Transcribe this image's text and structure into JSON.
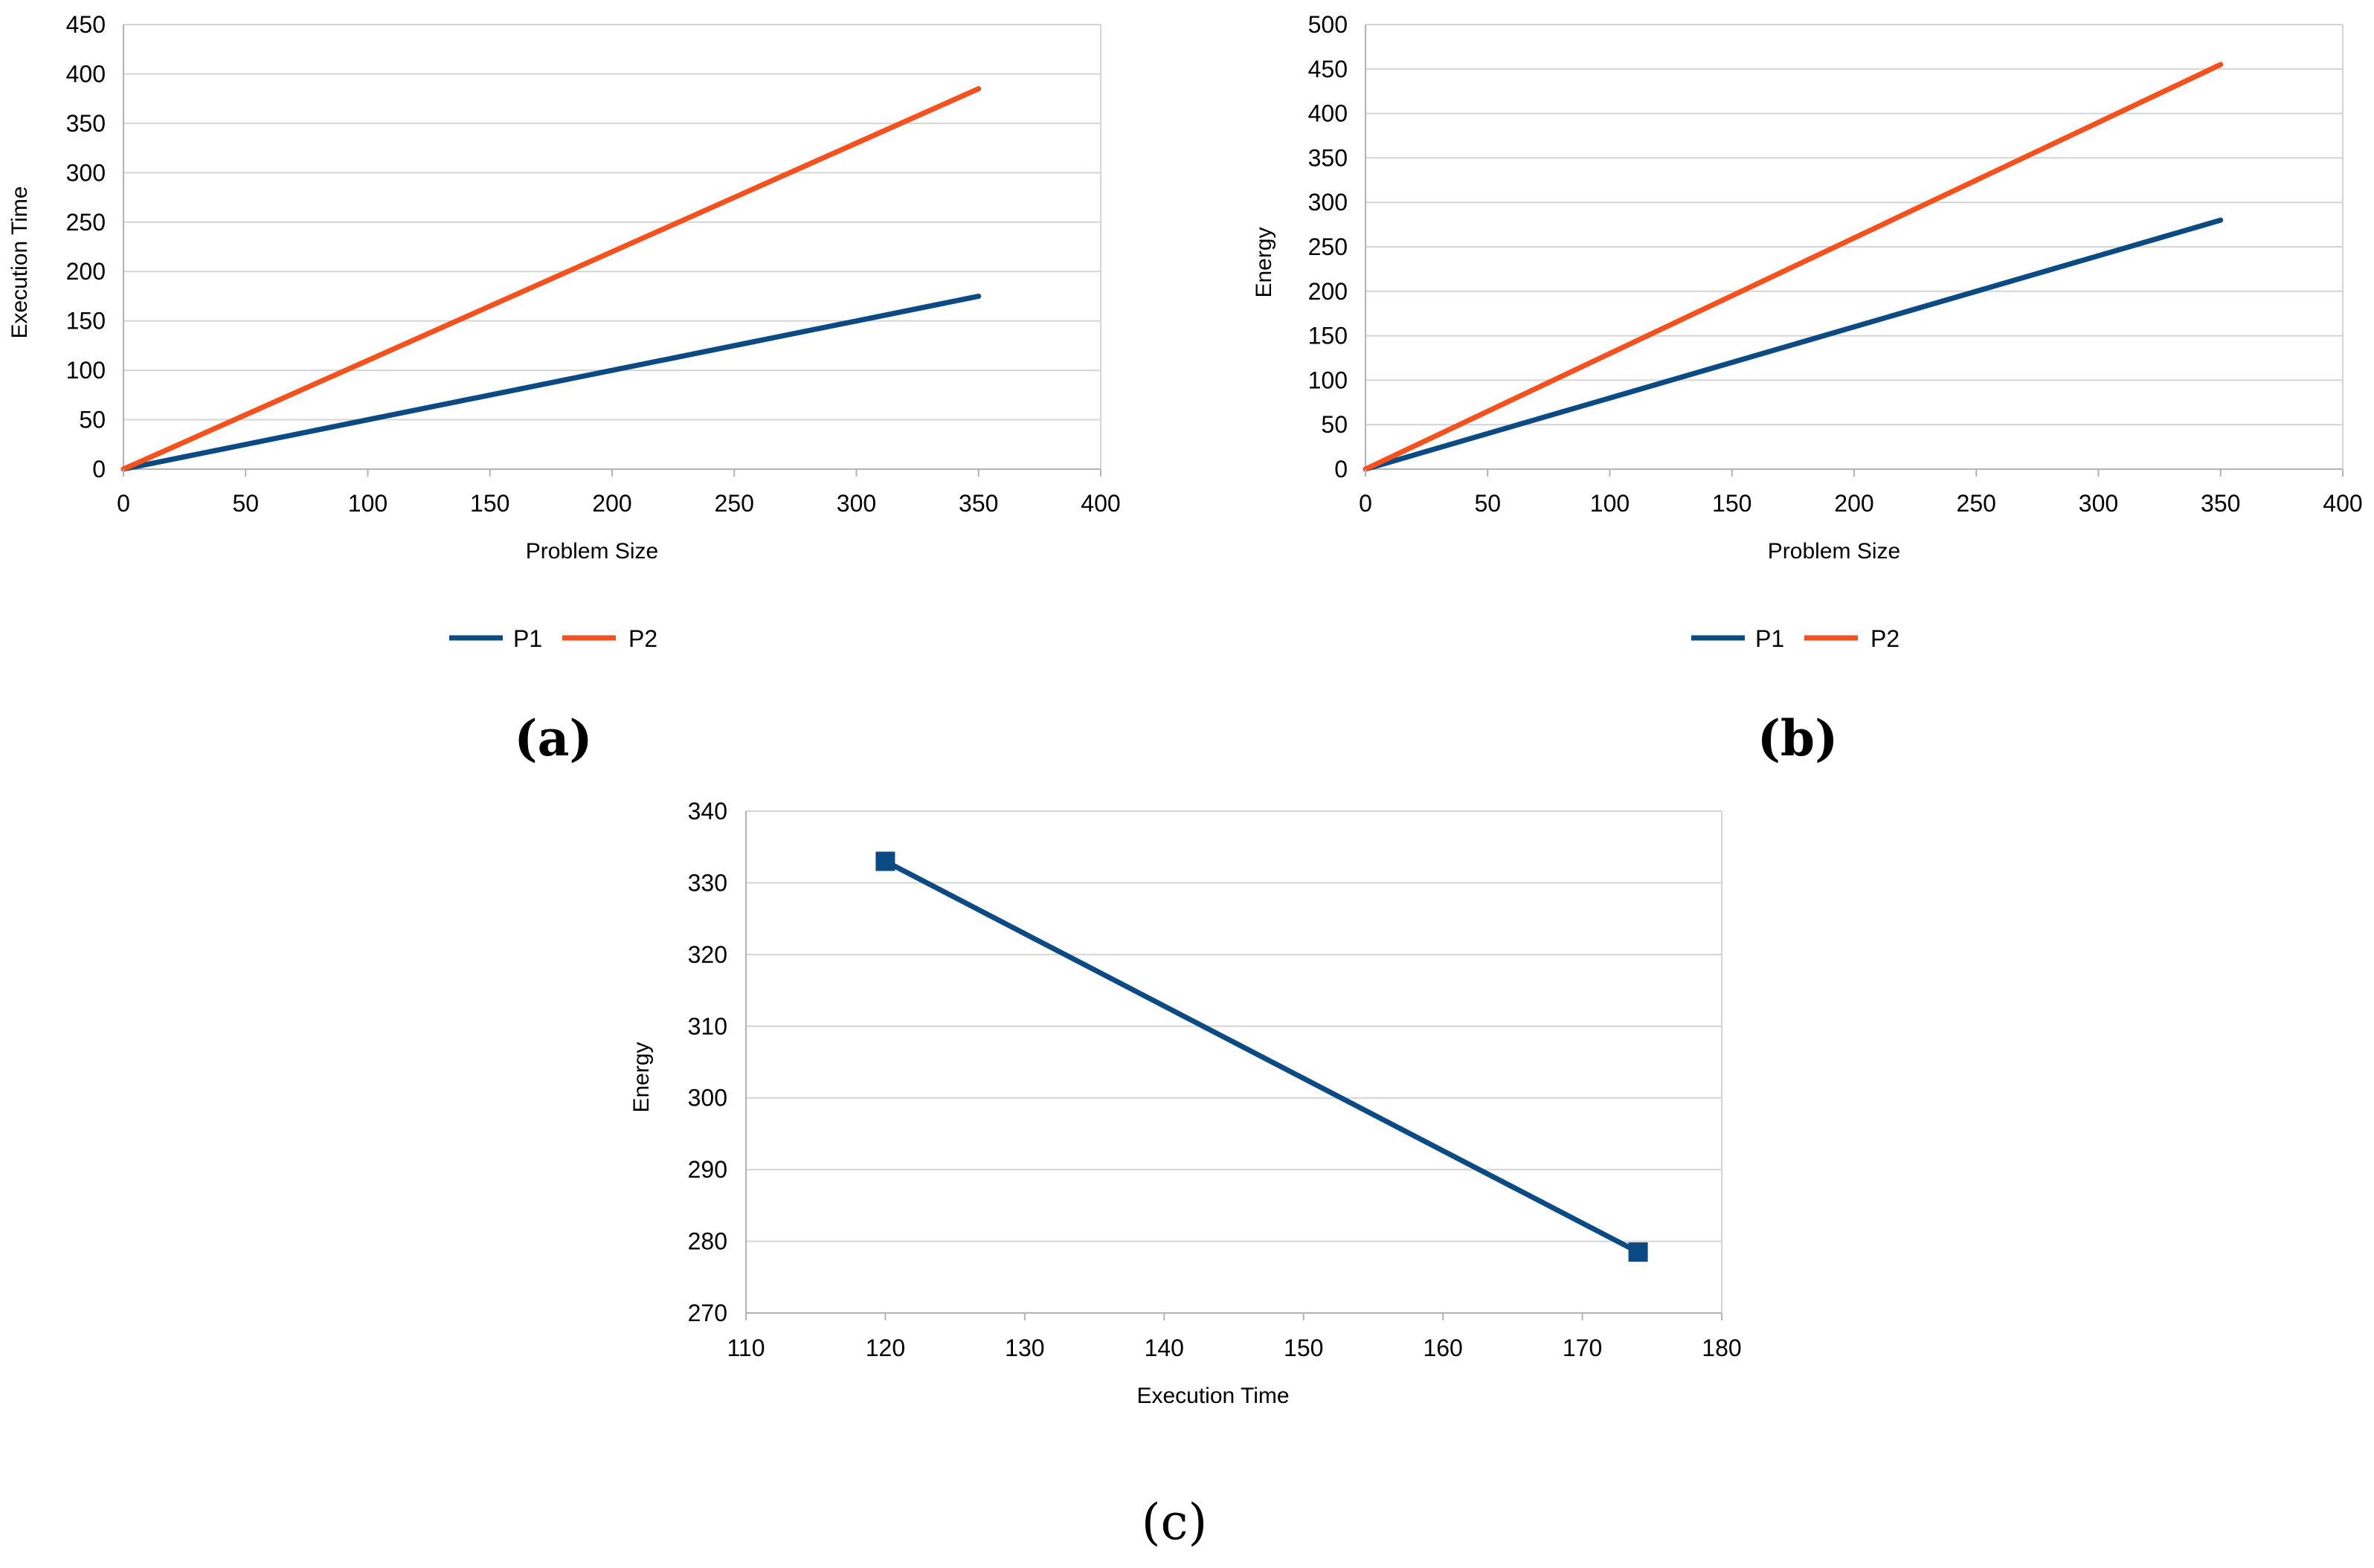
{
  "colors": {
    "p1": "#0b4a83",
    "p2": "#f4511e",
    "grid": "#d4d4d4",
    "axis": "#b3b3b3"
  },
  "chart_data": [
    {
      "id": "a",
      "type": "line",
      "caption": "(a)",
      "xlabel": "Problem Size",
      "ylabel": "Execution Time",
      "xlim": [
        0,
        400
      ],
      "ylim": [
        0,
        450
      ],
      "xticks": [
        0,
        50,
        100,
        150,
        200,
        250,
        300,
        350,
        400
      ],
      "yticks": [
        0,
        50,
        100,
        150,
        200,
        250,
        300,
        350,
        400,
        450
      ],
      "legend": "bottom",
      "series": [
        {
          "name": "P1",
          "color": "#0b4a83",
          "x": [
            0,
            350
          ],
          "y": [
            0,
            175
          ]
        },
        {
          "name": "P2",
          "color": "#f4511e",
          "x": [
            0,
            350
          ],
          "y": [
            0,
            385
          ]
        }
      ]
    },
    {
      "id": "b",
      "type": "line",
      "caption": "(b)",
      "xlabel": "Problem Size",
      "ylabel": "Energy",
      "xlim": [
        0,
        400
      ],
      "ylim": [
        0,
        500
      ],
      "xticks": [
        0,
        50,
        100,
        150,
        200,
        250,
        300,
        350,
        400
      ],
      "yticks": [
        0,
        50,
        100,
        150,
        200,
        250,
        300,
        350,
        400,
        450,
        500
      ],
      "legend": "bottom",
      "series": [
        {
          "name": "P1",
          "color": "#0b4a83",
          "x": [
            0,
            350
          ],
          "y": [
            0,
            280
          ]
        },
        {
          "name": "P2",
          "color": "#f4511e",
          "x": [
            0,
            350
          ],
          "y": [
            0,
            455
          ]
        }
      ]
    },
    {
      "id": "c",
      "type": "line",
      "caption": "(c)",
      "xlabel": "Execution Time",
      "ylabel": "Energy",
      "xlim": [
        110,
        180
      ],
      "ylim": [
        270,
        340
      ],
      "xticks": [
        110,
        120,
        130,
        140,
        150,
        160,
        170,
        180
      ],
      "yticks": [
        270,
        280,
        290,
        300,
        310,
        320,
        330,
        340
      ],
      "legend": "none",
      "markers": "square",
      "series": [
        {
          "name": "",
          "color": "#0b4a83",
          "x": [
            120,
            174
          ],
          "y": [
            333,
            278.5
          ]
        }
      ]
    }
  ]
}
